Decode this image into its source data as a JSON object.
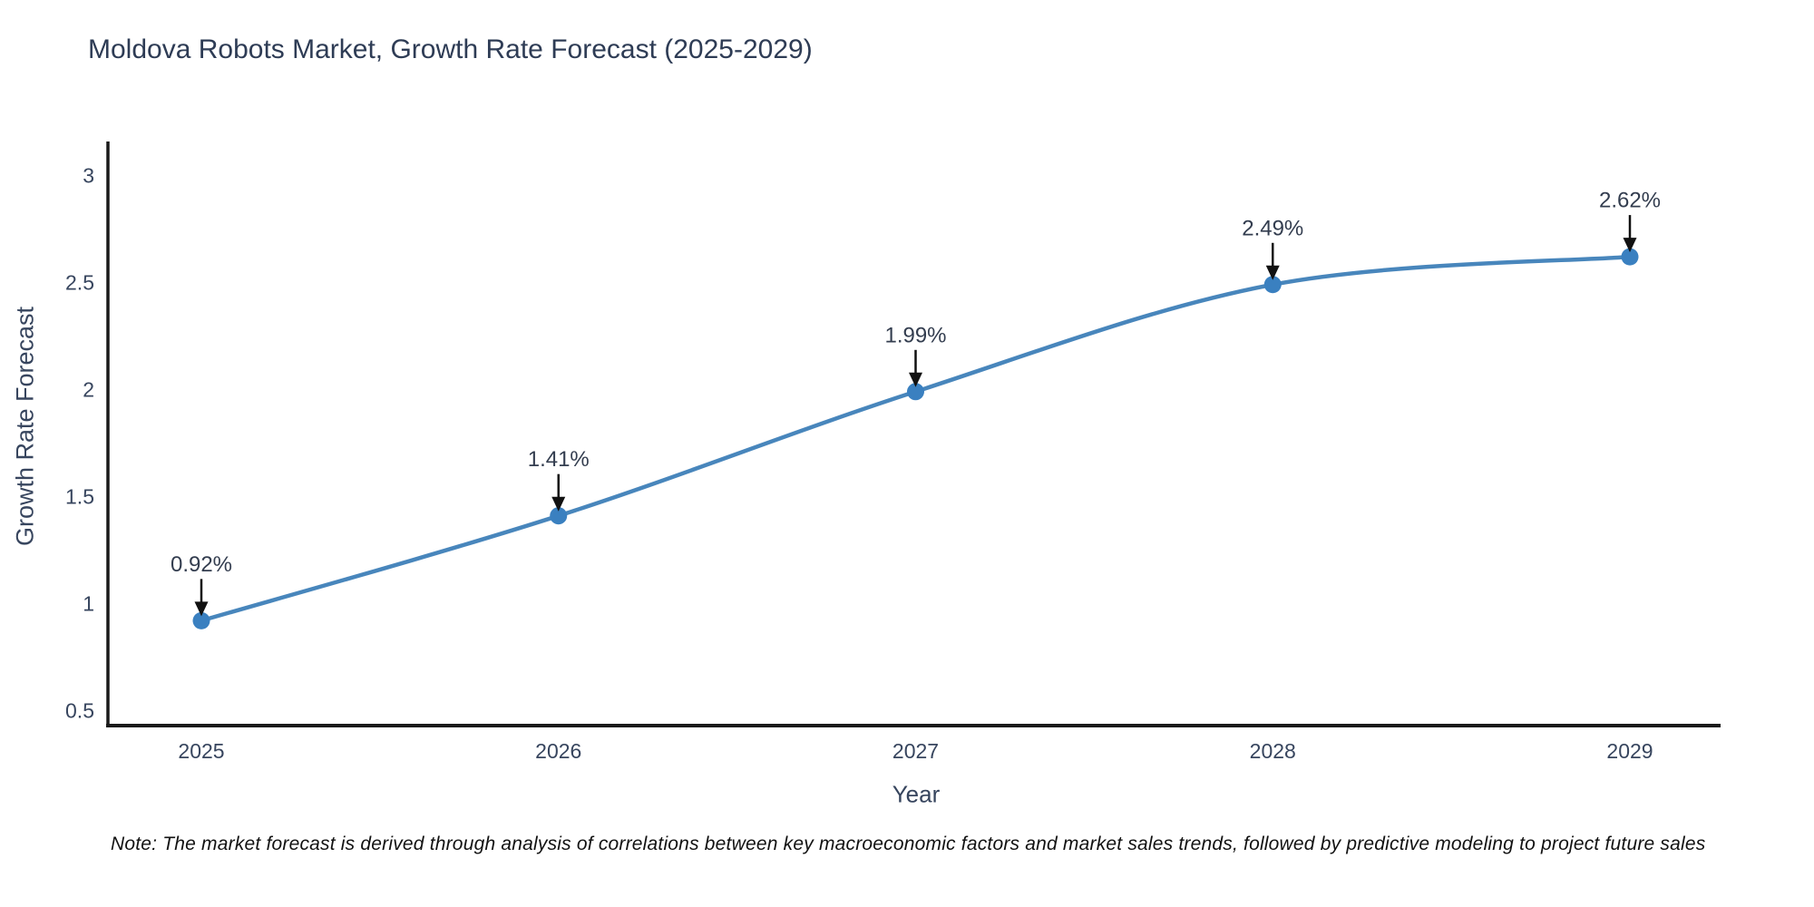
{
  "title": "Moldova Robots Market, Growth Rate Forecast (2025-2029)",
  "note": "Note: The market forecast is derived through analysis of correlations between key macroeconomic factors and market sales trends, followed by predictive modeling to project future sales",
  "chart_data": {
    "type": "line",
    "title": "Moldova Robots Market, Growth Rate Forecast (2025-2029)",
    "xlabel": "Year",
    "ylabel": "Growth Rate Forecast",
    "categories": [
      "2025",
      "2026",
      "2027",
      "2028",
      "2029"
    ],
    "x": [
      2025,
      2026,
      2027,
      2028,
      2029
    ],
    "values": [
      0.92,
      1.41,
      1.99,
      2.49,
      2.62
    ],
    "point_labels": [
      "0.92%",
      "1.41%",
      "1.99%",
      "2.49%",
      "2.62%"
    ],
    "yticks": [
      0.5,
      1,
      1.5,
      2,
      2.5,
      3
    ],
    "ytick_labels": [
      "0.5",
      "1",
      "1.5",
      "2",
      "2.5",
      "3"
    ],
    "ylim": [
      0.43,
      3.15
    ],
    "grid": false,
    "legend": null,
    "smooth": true,
    "line_color": "#4886bc",
    "marker_color": "#3a80c0",
    "annotation_color": "#333d4f",
    "arrow_color": "#111111",
    "axis_color": "#1a1a1a",
    "tick_color": "#37455e"
  }
}
